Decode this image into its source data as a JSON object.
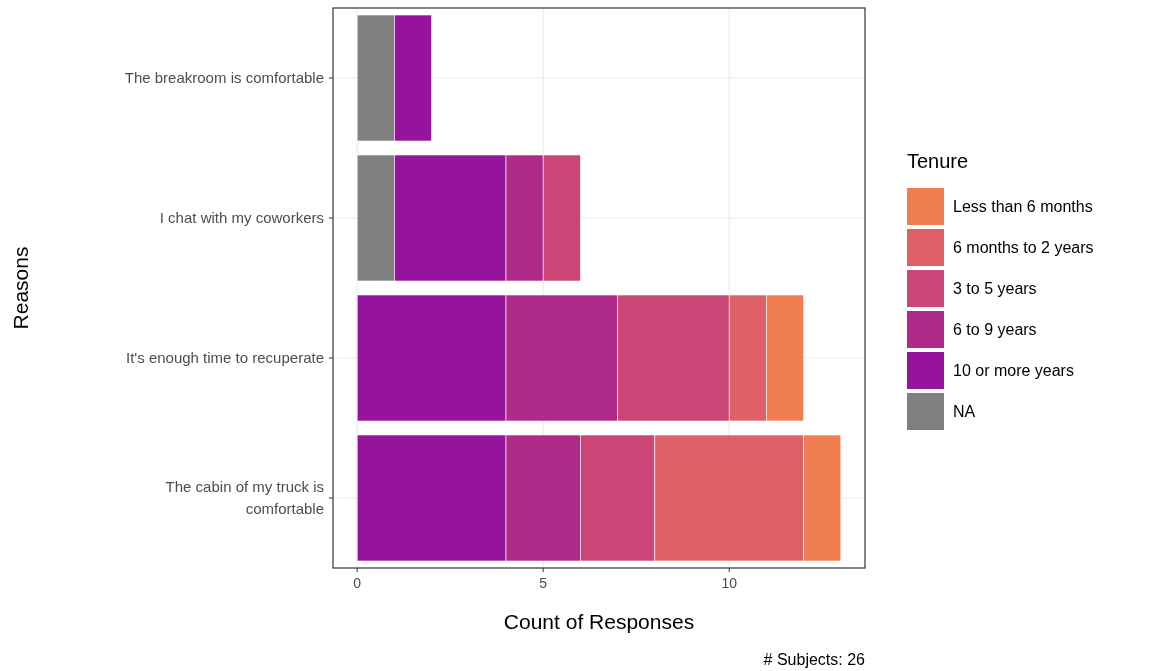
{
  "chart_data": {
    "type": "bar",
    "orientation": "horizontal",
    "stacked": true,
    "xlabel": "Count of Responses",
    "ylabel": "Reasons",
    "legend_title": "Tenure",
    "legend": "right",
    "grid": true,
    "categories": [
      "The breakroom is comfortable",
      "I chat with my coworkers",
      "It's enough time to recuperate",
      "The cabin of my truck is\ncomfortable"
    ],
    "series": [
      {
        "name": "NA",
        "color": "#808080",
        "values": [
          1,
          1,
          0,
          0
        ]
      },
      {
        "name": "10 or more years",
        "color": "#96139e",
        "values": [
          1,
          3,
          4,
          4
        ]
      },
      {
        "name": "6 to 9 years",
        "color": "#b02a8a",
        "values": [
          0,
          1,
          3,
          2
        ]
      },
      {
        "name": "3 to 5 years",
        "color": "#cc4577",
        "values": [
          0,
          1,
          3,
          2
        ]
      },
      {
        "name": "6 months to 2 years",
        "color": "#e06068",
        "values": [
          0,
          0,
          1,
          4
        ]
      },
      {
        "name": "Less than 6 months",
        "color": "#f07e52",
        "values": [
          0,
          0,
          1,
          1
        ]
      }
    ],
    "xlim": [
      -0.65,
      13.65
    ],
    "xticks": [
      0,
      5,
      10
    ],
    "annotations": [
      "# Subjects: 26"
    ]
  }
}
